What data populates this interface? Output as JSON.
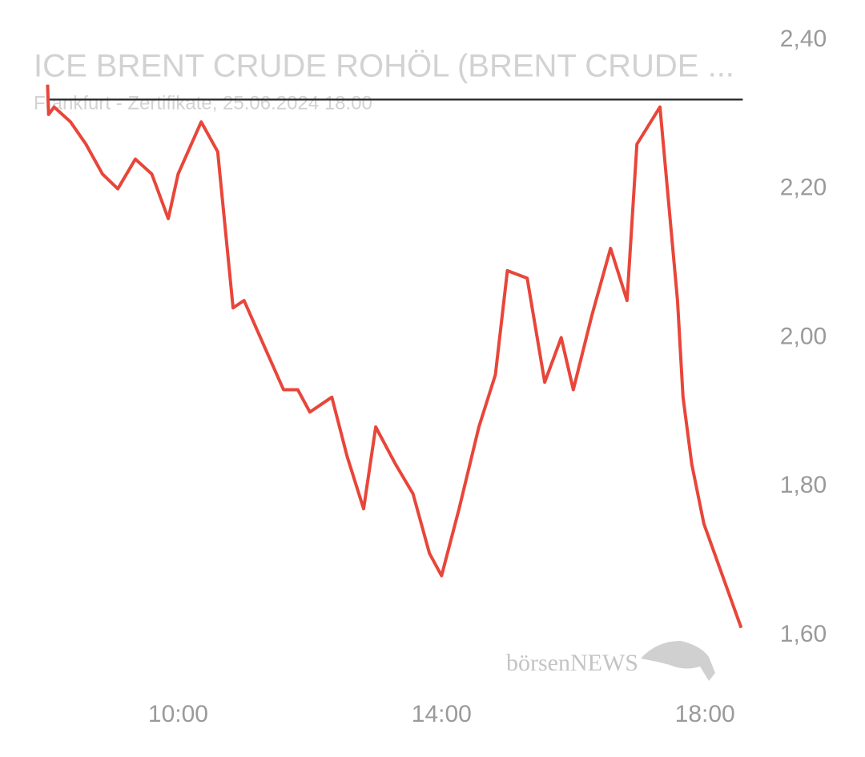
{
  "chart_data": {
    "type": "line",
    "title": "ICE BRENT CRUDE ROHÖL (BRENT CRUDE ...",
    "subtitle": "Frankfurt - Zertifikate, 25.06.2024 18:00",
    "watermark": "börsenNEWS",
    "x": [
      "08:01",
      "08:02",
      "08:07",
      "08:22",
      "08:36",
      "08:51",
      "09:05",
      "09:21",
      "09:36",
      "09:51",
      "10:00",
      "10:21",
      "10:36",
      "10:50",
      "11:00",
      "11:18",
      "11:36",
      "11:49",
      "12:00",
      "12:20",
      "12:34",
      "12:49",
      "13:00",
      "13:18",
      "13:34",
      "13:49",
      "14:00",
      "14:16",
      "14:34",
      "14:49",
      "15:00",
      "15:18",
      "15:34",
      "15:49",
      "16:00",
      "16:17",
      "16:34",
      "16:49",
      "16:58",
      "17:19",
      "17:35",
      "17:40",
      "17:48",
      "17:59",
      "18:33"
    ],
    "series": [
      {
        "color": "#e8463a",
        "values": [
          2.34,
          2.3,
          2.31,
          2.29,
          2.26,
          2.22,
          2.2,
          2.24,
          2.22,
          2.16,
          2.22,
          2.29,
          2.25,
          2.04,
          2.05,
          1.99,
          1.93,
          1.93,
          1.9,
          1.92,
          1.84,
          1.77,
          1.88,
          1.83,
          1.79,
          1.71,
          1.68,
          1.77,
          1.88,
          1.95,
          2.09,
          2.08,
          1.94,
          2.0,
          1.93,
          2.03,
          2.12,
          2.05,
          2.26,
          2.31,
          2.05,
          1.92,
          1.83,
          1.75,
          1.61
        ]
      }
    ],
    "reference_line": 2.32,
    "xlim": [
      "08:00",
      "18:40"
    ],
    "xticks": [
      "10:00",
      "14:00",
      "18:00"
    ],
    "ylim": [
      1.6,
      2.4
    ],
    "yticks": [
      {
        "value": 1.6,
        "label": "1,60"
      },
      {
        "value": 1.8,
        "label": "1,80"
      },
      {
        "value": 2.0,
        "label": "2,00"
      },
      {
        "value": 2.2,
        "label": "2,20"
      },
      {
        "value": 2.4,
        "label": "2,40"
      }
    ]
  }
}
